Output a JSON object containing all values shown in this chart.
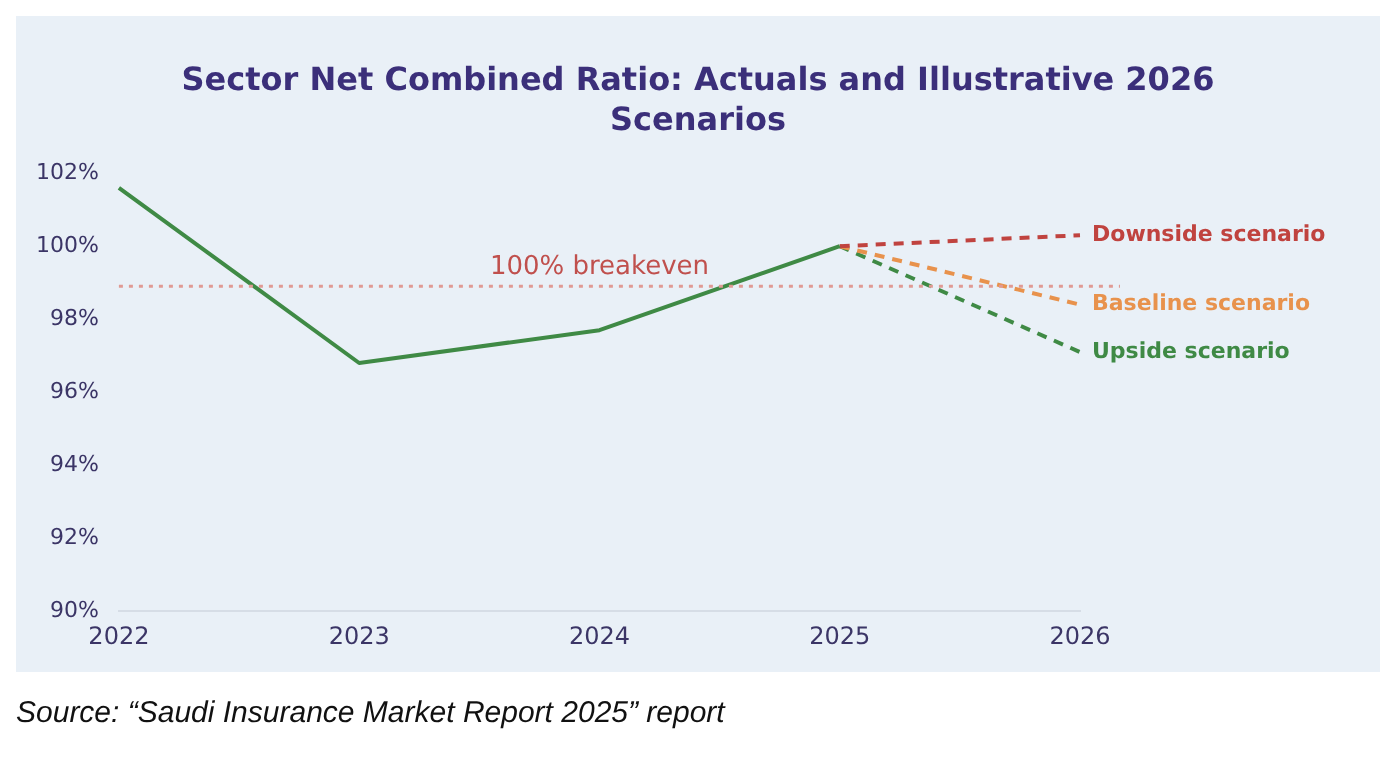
{
  "chart_data": {
    "type": "line",
    "title": "Sector Net Combined Ratio: Actuals and Illustrative 2026 Scenarios",
    "categories": [
      "2022",
      "2023",
      "2024",
      "2025",
      "2026"
    ],
    "series": [
      {
        "color": "#3f8a45",
        "values": [
          101.6,
          96.8,
          97.7,
          100.0,
          null
        ],
        "line_style": "solid"
      },
      {
        "name": "Downside scenario",
        "color": "#c0433f",
        "values": [
          null,
          null,
          null,
          100.0,
          100.3
        ],
        "line_style": "dashed"
      },
      {
        "name": "Baseline scenario",
        "color": "#e8924c",
        "values": [
          null,
          null,
          null,
          100.0,
          98.4
        ],
        "line_style": "dashed"
      },
      {
        "name": "Upside scenario",
        "color": "#3f8a45",
        "values": [
          null,
          null,
          null,
          100.0,
          97.1
        ],
        "line_style": "dashed"
      }
    ],
    "ylim": [
      90,
      102
    ],
    "yticks": [
      {
        "value": 90,
        "label": "90%"
      },
      {
        "value": 92,
        "label": "92%"
      },
      {
        "value": 94,
        "label": "94%"
      },
      {
        "value": 96,
        "label": "96%"
      },
      {
        "value": 98,
        "label": "98%"
      },
      {
        "value": 100,
        "label": "100%"
      },
      {
        "value": 102,
        "label": "102%"
      }
    ],
    "ref_lines": [
      {
        "axis": "y",
        "value": 98.9,
        "label": "100% breakeven",
        "color": "#e09a94",
        "line_style": "dotted"
      }
    ],
    "grid": false,
    "legend": false,
    "marker": "none",
    "annotations": [
      "Source: “Saudi Insurance Market Report 2025” report"
    ]
  }
}
